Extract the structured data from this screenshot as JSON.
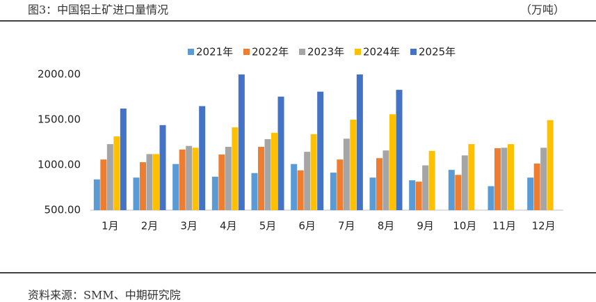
{
  "chart_data": {
    "type": "bar",
    "title": "图3：中国铝土矿进口量情况",
    "unit": "（万吨）",
    "source": "资料来源：SMM、中期研究院",
    "categories": [
      "1月",
      "2月",
      "3月",
      "4月",
      "5月",
      "6月",
      "7月",
      "8月",
      "9月",
      "10月",
      "11月",
      "12月"
    ],
    "series": [
      {
        "name": "2021年",
        "color": "#5b9bd5",
        "values": [
          840,
          860,
          1010,
          870,
          910,
          1010,
          915,
          860,
          830,
          945,
          765,
          860
        ]
      },
      {
        "name": "2022年",
        "color": "#ed7d31",
        "values": [
          1060,
          1030,
          1170,
          1115,
          1200,
          940,
          1060,
          1075,
          815,
          890,
          1185,
          1015
        ]
      },
      {
        "name": "2023年",
        "color": "#a5a5a5",
        "values": [
          1230,
          1120,
          1210,
          1200,
          1285,
          1145,
          1290,
          1160,
          995,
          1105,
          1190,
          1190
        ]
      },
      {
        "name": "2024年",
        "color": "#ffc000",
        "values": [
          1315,
          1120,
          1190,
          1415,
          1355,
          1340,
          1500,
          1560,
          1155,
          1230,
          1230,
          1495
        ]
      },
      {
        "name": "2025年",
        "color": "#4472c4",
        "values": [
          1623,
          1440,
          1650,
          2000,
          1755,
          1810,
          2000,
          1830,
          null,
          null,
          null,
          null
        ]
      }
    ],
    "ylim": [
      500,
      2000
    ],
    "yticks": [
      {
        "value": 500,
        "label": "500.00"
      },
      {
        "value": 1000,
        "label": "1000.00"
      },
      {
        "value": 1500,
        "label": "1500.00"
      },
      {
        "value": 2000,
        "label": "2000.00"
      }
    ],
    "grid": false
  }
}
